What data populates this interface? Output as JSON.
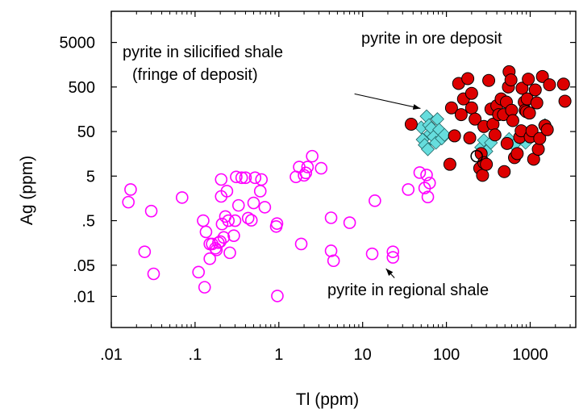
{
  "chart_data": {
    "type": "scatter",
    "xlabel": "Tl (ppm)",
    "ylabel": "Ag (ppm)",
    "x_scale": "log",
    "y_scale": "log",
    "xlim": [
      0.01,
      3500
    ],
    "ylim": [
      0.002,
      25000
    ],
    "x_ticks": [
      0.01,
      0.1,
      1,
      10,
      100,
      1000
    ],
    "x_tick_labels": [
      ".01",
      ".1",
      "1",
      "10",
      "100",
      "1000"
    ],
    "y_ticks": [
      0.01,
      0.05,
      0.5,
      5,
      50,
      500,
      5000
    ],
    "y_tick_labels": [
      ".01",
      ".05",
      ".5",
      "5",
      "50",
      "500",
      "5000"
    ],
    "grid": false,
    "annotations": [
      {
        "id": "regional",
        "text": "pyrite in regional shale",
        "arrow_from": [
          24,
          0.026
        ],
        "arrow_to": [
          19,
          0.042
        ]
      },
      {
        "id": "silicified",
        "lines": [
          "pyrite in silicified shale",
          "(fringe of deposit)"
        ],
        "arrow_from": [
          8,
          350
        ],
        "arrow_to": [
          49,
          165
        ]
      },
      {
        "id": "ore",
        "text": "pyrite in ore deposit"
      }
    ],
    "series": [
      {
        "id": "regional-shale",
        "marker": "circle-open",
        "color": "#ff00ff",
        "points": [
          [
            0.016,
            1.3
          ],
          [
            0.017,
            2.5
          ],
          [
            0.025,
            0.1
          ],
          [
            0.03,
            0.82
          ],
          [
            0.032,
            0.032
          ],
          [
            0.07,
            1.65
          ],
          [
            0.11,
            0.035
          ],
          [
            0.125,
            0.5
          ],
          [
            0.13,
            0.016
          ],
          [
            0.135,
            0.28
          ],
          [
            0.15,
            0.15
          ],
          [
            0.15,
            0.07
          ],
          [
            0.16,
            0.15
          ],
          [
            0.175,
            0.12
          ],
          [
            0.18,
            0.11
          ],
          [
            0.19,
            0.16
          ],
          [
            0.2,
            0.17
          ],
          [
            0.205,
            4.2
          ],
          [
            0.205,
            1.75
          ],
          [
            0.21,
            0.42
          ],
          [
            0.22,
            0.21
          ],
          [
            0.23,
            0.62
          ],
          [
            0.24,
            2.3
          ],
          [
            0.25,
            0.5
          ],
          [
            0.26,
            0.095
          ],
          [
            0.29,
            0.23
          ],
          [
            0.3,
            0.5
          ],
          [
            0.31,
            4.8
          ],
          [
            0.33,
            1.1
          ],
          [
            0.36,
            4.6
          ],
          [
            0.4,
            4.6
          ],
          [
            0.43,
            0.57
          ],
          [
            0.47,
            0.51
          ],
          [
            0.5,
            1.25
          ],
          [
            0.52,
            4.6
          ],
          [
            0.6,
            2.3
          ],
          [
            0.62,
            4.2
          ],
          [
            0.68,
            1.0
          ],
          [
            0.93,
            0.37
          ],
          [
            0.95,
            0.43
          ],
          [
            0.96,
            0.0102
          ],
          [
            1.6,
            4.8
          ],
          [
            1.75,
            8.0
          ],
          [
            1.85,
            0.15
          ],
          [
            2.0,
            5.2
          ],
          [
            2.1,
            5.9
          ],
          [
            2.2,
            8.0
          ],
          [
            2.5,
            14.0
          ],
          [
            3.2,
            7.5
          ],
          [
            4.2,
            0.58
          ],
          [
            4.2,
            0.105
          ],
          [
            4.5,
            0.063
          ],
          [
            7.0,
            0.45
          ],
          [
            13.0,
            0.09
          ],
          [
            14.0,
            1.4
          ],
          [
            23.0,
            0.1
          ],
          [
            23.0,
            0.075
          ],
          [
            35.0,
            2.5
          ],
          [
            48.0,
            6.0
          ],
          [
            55.0,
            2.7
          ],
          [
            58.0,
            5.3
          ],
          [
            60.0,
            1.7
          ],
          [
            63.0,
            3.5
          ]
        ]
      },
      {
        "id": "silicified-shale",
        "marker": "diamond-filled",
        "color": "#66dddd",
        "points": [
          [
            50,
            62
          ],
          [
            52,
            33
          ],
          [
            55,
            25
          ],
          [
            58,
            110
          ],
          [
            60,
            20
          ],
          [
            62,
            70
          ],
          [
            64,
            45
          ],
          [
            66,
            60
          ],
          [
            70,
            38
          ],
          [
            75,
            28
          ],
          [
            78,
            95
          ],
          [
            82,
            55
          ],
          [
            88,
            35
          ],
          [
            95,
            42
          ],
          [
            260,
            22
          ],
          [
            280,
            32
          ],
          [
            300,
            18
          ],
          [
            340,
            28
          ],
          [
            560,
            34
          ],
          [
            640,
            25
          ],
          [
            880,
            28
          ],
          [
            1500,
            70
          ]
        ]
      },
      {
        "id": "ore-deposit",
        "marker": "circle-filled",
        "color": "#dd0000",
        "points": [
          [
            38,
            73
          ],
          [
            110,
            9.2
          ],
          [
            115,
            170
          ],
          [
            125,
            40
          ],
          [
            140,
            600
          ],
          [
            150,
            120
          ],
          [
            160,
            270
          ],
          [
            180,
            770
          ],
          [
            190,
            36
          ],
          [
            200,
            360
          ],
          [
            200,
            170
          ],
          [
            220,
            95
          ],
          [
            250,
            7.5
          ],
          [
            260,
            16
          ],
          [
            270,
            5.2
          ],
          [
            280,
            65
          ],
          [
            280,
            10
          ],
          [
            300,
            9.2
          ],
          [
            320,
            700
          ],
          [
            340,
            160
          ],
          [
            360,
            73
          ],
          [
            380,
            42
          ],
          [
            400,
            190
          ],
          [
            420,
            120
          ],
          [
            450,
            270
          ],
          [
            480,
            120
          ],
          [
            490,
            6.3
          ],
          [
            520,
            230
          ],
          [
            530,
            27
          ],
          [
            550,
            500
          ],
          [
            560,
            1100
          ],
          [
            590,
            720
          ],
          [
            600,
            150
          ],
          [
            620,
            88
          ],
          [
            650,
            13
          ],
          [
            700,
            16
          ],
          [
            750,
            37
          ],
          [
            780,
            52
          ],
          [
            800,
            470
          ],
          [
            850,
            230
          ],
          [
            870,
            150
          ],
          [
            900,
            140
          ],
          [
            920,
            270
          ],
          [
            950,
            750
          ],
          [
            980,
            130
          ],
          [
            1000,
            38
          ],
          [
            1050,
            52
          ],
          [
            1100,
            12
          ],
          [
            1150,
            430
          ],
          [
            1200,
            220
          ],
          [
            1250,
            20
          ],
          [
            1300,
            35
          ],
          [
            1400,
            860
          ],
          [
            1500,
            68
          ],
          [
            1600,
            55
          ],
          [
            1700,
            560
          ],
          [
            2500,
            580
          ],
          [
            2600,
            240
          ]
        ]
      },
      {
        "id": "unlabeled-open",
        "marker": "circle-open",
        "color": "#000000",
        "points": [
          [
            230,
            14
          ]
        ]
      }
    ]
  }
}
